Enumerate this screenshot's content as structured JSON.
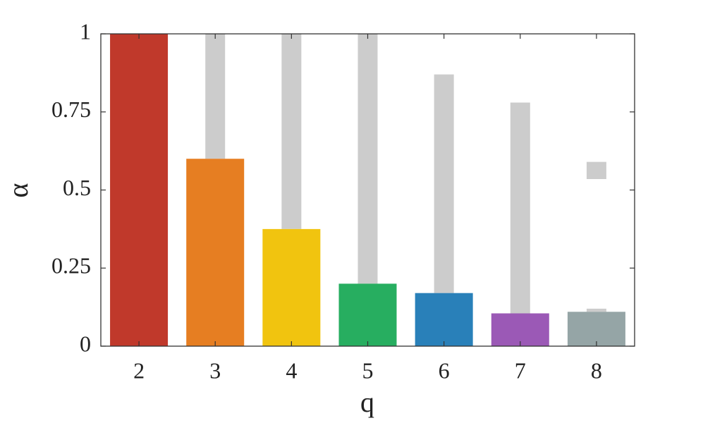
{
  "chart_data": {
    "type": "bar",
    "xlabel": "q",
    "ylabel": "α",
    "categories": [
      "2",
      "3",
      "4",
      "5",
      "6",
      "7",
      "8"
    ],
    "values": [
      1,
      0.6,
      0.375,
      0.2,
      0.17,
      0.105,
      0.11
    ],
    "colors": [
      "#c0392b",
      "#e67e22",
      "#f1c40f",
      "#27ae60",
      "#2980b9",
      "#9b59b6",
      "#95a5a6"
    ],
    "intervals": [
      [],
      [
        [
          0.6,
          1
        ]
      ],
      [
        [
          0.375,
          1
        ]
      ],
      [
        [
          0.2,
          1
        ]
      ],
      [
        [
          0.17,
          0.87
        ]
      ],
      [
        [
          0.105,
          0.78
        ]
      ],
      [
        [
          0.11,
          0.12
        ],
        [
          0.535,
          0.59
        ]
      ]
    ],
    "interval_color": "#cccccc",
    "ylim": [
      0,
      1
    ],
    "yticks": [
      0,
      0.25,
      0.5,
      0.75,
      1
    ]
  }
}
